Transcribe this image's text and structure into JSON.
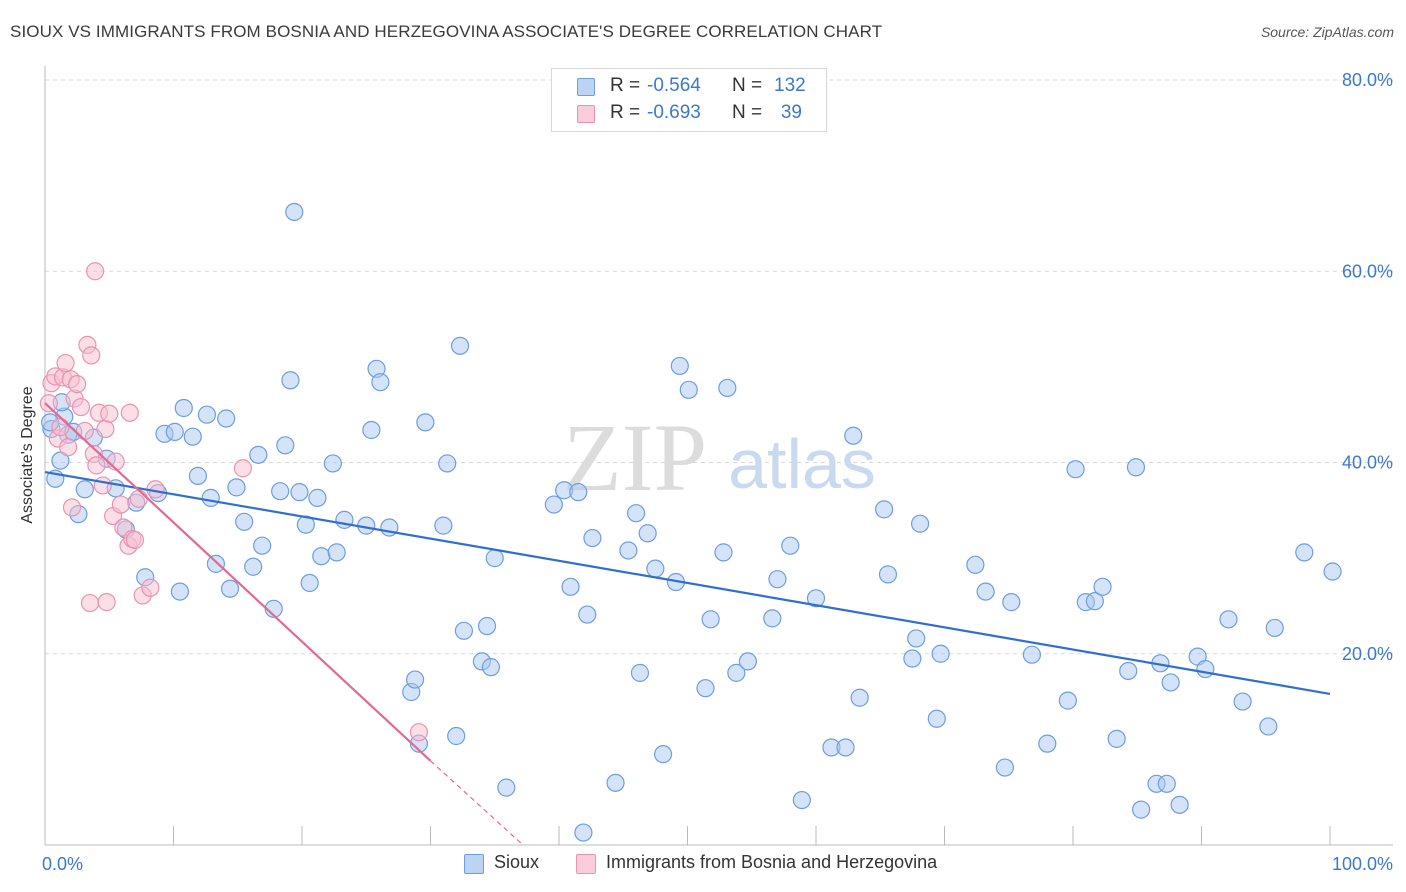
{
  "header": {
    "title": "SIOUX VS IMMIGRANTS FROM BOSNIA AND HERZEGOVINA ASSOCIATE'S DEGREE CORRELATION CHART",
    "source": "Source: ZipAtlas.com"
  },
  "legend": {
    "rows": [
      {
        "r_label": "R =",
        "r_value": "-0.564",
        "n_label": "N =",
        "n_value": "132"
      },
      {
        "r_label": "R =",
        "r_value": "-0.693",
        "n_label": "N =",
        "n_value": "39"
      }
    ]
  },
  "watermark": {
    "zip": "ZIP",
    "atlas": "atlas"
  },
  "colors": {
    "sioux_fill": "#a9c8f0",
    "sioux_stroke": "#6d9ee0",
    "sioux_line": "#2f6fcf",
    "bosnia_fill": "#f7bfd0",
    "bosnia_stroke": "#ec92b0",
    "bosnia_line": "#e06a93",
    "axis_text": "#3b78d0",
    "grid": "#d9d9d9"
  },
  "chart_data": {
    "type": "scatter",
    "title": "SIOUX VS IMMIGRANTS FROM BOSNIA AND HERZEGOVINA ASSOCIATE'S DEGREE CORRELATION CHART",
    "xlabel": "",
    "ylabel": "Associate's Degree",
    "xlim": [
      0,
      100
    ],
    "ylim": [
      0,
      80
    ],
    "x_tick_labels": [
      "0.0%",
      "100.0%"
    ],
    "y_tick_labels": [
      "20.0%",
      "40.0%",
      "60.0%",
      "80.0%"
    ],
    "y_ticks": [
      20,
      40,
      60,
      80
    ],
    "grid": true,
    "legend_position": "top-center",
    "series": [
      {
        "name": "Sioux",
        "points": [
          [
            0.5,
            43.5
          ],
          [
            0.8,
            38.3
          ],
          [
            1.2,
            40.2
          ],
          [
            1.5,
            44.8
          ],
          [
            1.8,
            42.9
          ],
          [
            2.2,
            43.2
          ],
          [
            2.6,
            34.6
          ],
          [
            3.1,
            37.2
          ],
          [
            3.8,
            42.6
          ],
          [
            4.8,
            40.4
          ],
          [
            5.5,
            37.3
          ],
          [
            6.3,
            33.0
          ],
          [
            7.1,
            35.8
          ],
          [
            7.8,
            28.0
          ],
          [
            8.8,
            36.8
          ],
          [
            9.3,
            43.0
          ],
          [
            10.1,
            43.2
          ],
          [
            10.5,
            26.5
          ],
          [
            10.8,
            45.7
          ],
          [
            11.5,
            42.7
          ],
          [
            11.9,
            38.6
          ],
          [
            12.6,
            45.0
          ],
          [
            12.9,
            36.3
          ],
          [
            13.3,
            29.4
          ],
          [
            14.1,
            44.6
          ],
          [
            14.4,
            26.8
          ],
          [
            14.9,
            37.4
          ],
          [
            15.5,
            33.8
          ],
          [
            16.2,
            29.1
          ],
          [
            16.6,
            40.8
          ],
          [
            16.9,
            31.3
          ],
          [
            17.8,
            24.7
          ],
          [
            18.3,
            37.0
          ],
          [
            18.7,
            41.8
          ],
          [
            19.1,
            48.6
          ],
          [
            19.4,
            66.2
          ],
          [
            19.8,
            36.9
          ],
          [
            20.3,
            33.5
          ],
          [
            20.6,
            27.4
          ],
          [
            21.2,
            36.3
          ],
          [
            21.5,
            30.2
          ],
          [
            22.4,
            39.9
          ],
          [
            22.7,
            30.6
          ],
          [
            23.3,
            34.0
          ],
          [
            25.0,
            33.4
          ],
          [
            25.4,
            43.4
          ],
          [
            25.8,
            49.8
          ],
          [
            26.1,
            48.4
          ],
          [
            26.8,
            33.2
          ],
          [
            28.5,
            16.0
          ],
          [
            28.8,
            17.3
          ],
          [
            29.1,
            10.6
          ],
          [
            29.6,
            44.2
          ],
          [
            31.0,
            33.4
          ],
          [
            31.3,
            39.9
          ],
          [
            32.0,
            11.4
          ],
          [
            32.3,
            52.2
          ],
          [
            32.6,
            22.4
          ],
          [
            34.0,
            19.2
          ],
          [
            34.4,
            22.9
          ],
          [
            34.7,
            18.6
          ],
          [
            35.0,
            30.0
          ],
          [
            35.9,
            6.0
          ],
          [
            39.6,
            35.6
          ],
          [
            40.4,
            37.1
          ],
          [
            40.9,
            27.0
          ],
          [
            41.5,
            36.9
          ],
          [
            41.9,
            1.3
          ],
          [
            42.2,
            24.1
          ],
          [
            42.6,
            32.1
          ],
          [
            44.4,
            6.5
          ],
          [
            45.4,
            30.8
          ],
          [
            46.0,
            34.7
          ],
          [
            46.3,
            18.0
          ],
          [
            46.9,
            32.6
          ],
          [
            47.5,
            28.9
          ],
          [
            48.1,
            9.5
          ],
          [
            49.1,
            27.5
          ],
          [
            49.4,
            50.1
          ],
          [
            50.1,
            47.6
          ],
          [
            51.4,
            16.4
          ],
          [
            51.8,
            23.6
          ],
          [
            52.8,
            30.6
          ],
          [
            53.1,
            47.8
          ],
          [
            53.8,
            18.0
          ],
          [
            54.7,
            19.2
          ],
          [
            56.6,
            23.7
          ],
          [
            57.0,
            27.8
          ],
          [
            58.0,
            31.3
          ],
          [
            58.9,
            4.7
          ],
          [
            60.0,
            25.8
          ],
          [
            61.2,
            10.2
          ],
          [
            62.3,
            10.2
          ],
          [
            62.9,
            42.8
          ],
          [
            63.4,
            15.4
          ],
          [
            65.3,
            35.1
          ],
          [
            65.6,
            28.3
          ],
          [
            67.5,
            19.5
          ],
          [
            67.8,
            21.6
          ],
          [
            68.1,
            33.6
          ],
          [
            69.4,
            13.2
          ],
          [
            69.7,
            20.0
          ],
          [
            72.4,
            29.3
          ],
          [
            73.2,
            26.5
          ],
          [
            74.7,
            8.1
          ],
          [
            75.2,
            25.4
          ],
          [
            76.8,
            19.9
          ],
          [
            78.0,
            10.6
          ],
          [
            79.6,
            15.1
          ],
          [
            80.2,
            39.3
          ],
          [
            81.0,
            25.4
          ],
          [
            81.7,
            25.5
          ],
          [
            82.3,
            27.0
          ],
          [
            83.4,
            11.1
          ],
          [
            84.3,
            18.2
          ],
          [
            84.9,
            39.5
          ],
          [
            85.3,
            3.7
          ],
          [
            86.5,
            6.4
          ],
          [
            86.8,
            19.0
          ],
          [
            87.3,
            6.4
          ],
          [
            87.6,
            17.0
          ],
          [
            88.3,
            4.2
          ],
          [
            89.7,
            19.7
          ],
          [
            90.3,
            18.4
          ],
          [
            92.1,
            23.6
          ],
          [
            93.2,
            15.0
          ],
          [
            95.2,
            12.4
          ],
          [
            95.7,
            22.7
          ],
          [
            98.0,
            30.6
          ],
          [
            100.2,
            28.6
          ],
          [
            0.4,
            44.2
          ],
          [
            1.3,
            46.3
          ]
        ],
        "trend": {
          "x": [
            0,
            100
          ],
          "y": [
            39.0,
            15.8
          ]
        }
      },
      {
        "name": "Immigrants from Bosnia and Herzegovina",
        "points": [
          [
            0.3,
            46.2
          ],
          [
            0.5,
            48.3
          ],
          [
            0.8,
            49.0
          ],
          [
            1.0,
            42.5
          ],
          [
            1.2,
            43.7
          ],
          [
            1.4,
            48.9
          ],
          [
            1.6,
            50.4
          ],
          [
            1.8,
            41.6
          ],
          [
            2.0,
            48.7
          ],
          [
            2.1,
            35.3
          ],
          [
            2.3,
            46.7
          ],
          [
            2.5,
            48.2
          ],
          [
            2.8,
            45.8
          ],
          [
            3.1,
            43.3
          ],
          [
            3.3,
            52.3
          ],
          [
            3.6,
            51.2
          ],
          [
            3.8,
            40.9
          ],
          [
            4.0,
            39.7
          ],
          [
            4.2,
            45.2
          ],
          [
            4.5,
            37.6
          ],
          [
            4.7,
            43.5
          ],
          [
            5.0,
            45.1
          ],
          [
            5.3,
            34.4
          ],
          [
            5.5,
            40.1
          ],
          [
            5.9,
            35.6
          ],
          [
            6.1,
            33.2
          ],
          [
            6.5,
            31.3
          ],
          [
            6.8,
            32.0
          ],
          [
            7.0,
            31.9
          ],
          [
            7.3,
            36.2
          ],
          [
            7.6,
            26.1
          ],
          [
            8.2,
            26.9
          ],
          [
            8.6,
            37.2
          ],
          [
            3.9,
            60.0
          ],
          [
            3.5,
            25.3
          ],
          [
            4.8,
            25.4
          ],
          [
            6.6,
            45.2
          ],
          [
            15.4,
            39.4
          ],
          [
            29.1,
            11.8
          ]
        ],
        "trend": {
          "x": [
            0,
            30.0
          ],
          "y": [
            46.2,
            8.8
          ]
        },
        "trend_extension": {
          "x": [
            30.0,
            37.2
          ],
          "y": [
            8.8,
            0.0
          ]
        }
      }
    ]
  }
}
